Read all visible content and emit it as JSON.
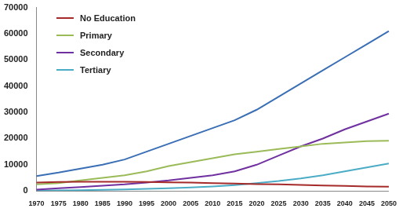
{
  "chart_data": {
    "type": "line",
    "categories": [
      "1970",
      "1975",
      "1980",
      "1985",
      "1990",
      "1995",
      "2000",
      "2005",
      "2010",
      "2015",
      "2020",
      "2025",
      "2030",
      "2035",
      "2040",
      "2045",
      "2050"
    ],
    "series": [
      {
        "name": "No Education",
        "color": "#a52a2a",
        "values": [
          3200,
          3400,
          3500,
          3500,
          3500,
          3400,
          3300,
          3200,
          3000,
          2800,
          2600,
          2500,
          2300,
          2100,
          1900,
          1700,
          1600
        ]
      },
      {
        "name": "Primary",
        "color": "#9bbb59",
        "values": [
          2500,
          3000,
          4000,
          5000,
          6000,
          7500,
          9500,
          11000,
          12500,
          14000,
          15000,
          16000,
          17000,
          18000,
          18500,
          19000,
          19200
        ]
      },
      {
        "name": "Secondary",
        "color": "#7030a0",
        "values": [
          500,
          1000,
          1500,
          2000,
          2500,
          3200,
          4000,
          5000,
          6000,
          7500,
          10000,
          13500,
          17000,
          20000,
          23500,
          26500,
          29500
        ]
      },
      {
        "name": "Tertiary",
        "color": "#4bacc6",
        "values": [
          100,
          200,
          300,
          400,
          600,
          800,
          1000,
          1300,
          1700,
          2200,
          3000,
          3800,
          4800,
          6000,
          7500,
          9000,
          10500
        ]
      },
      {
        "color": "#3a6fb5",
        "values": [
          5700,
          7000,
          8500,
          10000,
          12000,
          15000,
          18000,
          21000,
          24000,
          27000,
          31000,
          36000,
          41000,
          46000,
          51000,
          56000,
          61000
        ]
      }
    ],
    "ylim": [
      0,
      70000
    ],
    "yticks": [
      0,
      10000,
      20000,
      30000,
      40000,
      50000,
      60000,
      70000
    ],
    "grid": false,
    "legend": "upper left"
  }
}
